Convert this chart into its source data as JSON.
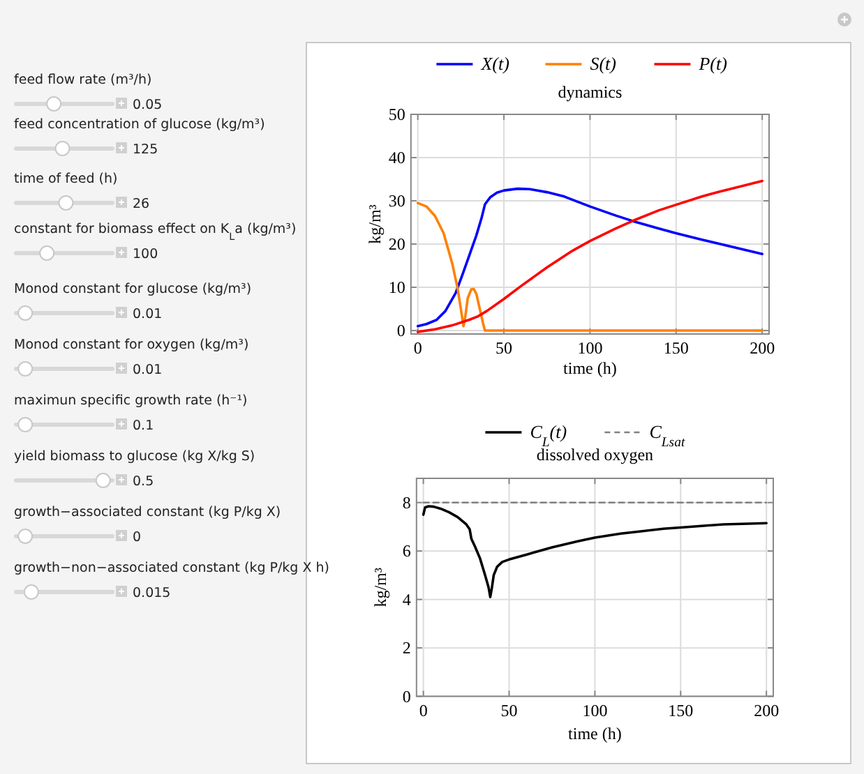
{
  "chart_data": [
    {
      "type": "other",
      "annotations": [
        "feed flow rate (m³/h)",
        "0.05",
        "feed concentration of glucose (kg/m³)",
        "125",
        "time of feed (h)",
        "26",
        "constant for biomass effect on K$_{L}$a (kg/m³)",
        "100",
        "Monod constant for glucose (kg/m³)",
        "0.01",
        "Monod constant for oxygen (kg/m³)",
        "0.01",
        "maximun specific growth rate (h⁻¹)",
        "0.1",
        "yield biomass to glucose (kg X/kg S)",
        "0.5",
        "growth−associated constant (kg P/kg X)",
        "0",
        "growth−non−associated constant (kg P/kg X h)",
        "0.015"
      ]
    },
    {
      "type": "line",
      "title": "dynamics",
      "xlabel": "time (h)",
      "ylabel": "kg/m³",
      "xlim": [
        -4,
        204
      ],
      "ylim": [
        -0.8,
        50
      ],
      "xticks": [
        0,
        50,
        100,
        150,
        200
      ],
      "yticks": [
        0,
        10,
        20,
        30,
        40,
        50
      ],
      "grid": true,
      "legend": "top",
      "series": [
        {
          "name": "X(t)",
          "color": "#0000ff",
          "x": [
            0,
            5,
            11,
            16,
            22,
            26,
            30,
            34,
            37,
            39,
            42,
            46,
            50,
            58,
            65,
            75,
            85,
            100,
            115,
            125,
            140,
            150,
            165,
            180,
            200
          ],
          "values": [
            1,
            1.5,
            2.5,
            4.5,
            8.7,
            13,
            17.5,
            22,
            26,
            29.2,
            30.8,
            31.9,
            32.4,
            32.8,
            32.7,
            32,
            31,
            28.7,
            26.6,
            25.3,
            23.6,
            22.5,
            21,
            19.6,
            17.7
          ]
        },
        {
          "name": "S(t)",
          "color": "#ff8000",
          "x": [
            0,
            5,
            10,
            15,
            20,
            23,
            25,
            26.5,
            27.5,
            29,
            31,
            32.5,
            34,
            36,
            38,
            39,
            40,
            100,
            200
          ],
          "values": [
            29.5,
            28.7,
            26.5,
            22.5,
            15.5,
            10,
            5,
            1,
            3,
            7.5,
            9.5,
            9.6,
            8.5,
            5,
            1.5,
            0,
            0,
            0,
            0
          ]
        },
        {
          "name": "P(t)",
          "color": "#ff0000",
          "x": [
            0,
            10,
            20,
            30,
            35,
            40,
            50,
            60,
            75,
            90,
            100,
            115,
            125,
            140,
            150,
            165,
            175,
            190,
            200
          ],
          "values": [
            -0.3,
            0.3,
            1.2,
            2.5,
            3.3,
            4.5,
            7.3,
            10.3,
            14.6,
            18.5,
            20.7,
            23.6,
            25.4,
            27.8,
            29.1,
            31,
            32.1,
            33.6,
            34.6
          ]
        }
      ]
    },
    {
      "type": "line",
      "title": "dissolved oxygen",
      "xlabel": "time (h)",
      "ylabel": "kg/m³",
      "xlim": [
        -4,
        204
      ],
      "ylim": [
        0,
        9
      ],
      "xticks": [
        0,
        50,
        100,
        150,
        200
      ],
      "yticks": [
        0,
        2,
        4,
        6,
        8
      ],
      "grid": true,
      "legend": "top",
      "series": [
        {
          "name": "C$_{L}$(t)",
          "color": "#000000",
          "x": [
            0,
            1,
            3,
            6,
            10,
            15,
            20,
            25,
            27,
            28,
            30,
            33,
            36,
            38,
            39,
            40,
            41,
            43,
            46,
            50,
            60,
            75,
            90,
            100,
            115,
            125,
            140,
            150,
            165,
            175,
            190,
            200
          ],
          "values": [
            7.5,
            7.8,
            7.85,
            7.83,
            7.75,
            7.6,
            7.4,
            7.1,
            6.9,
            6.5,
            6.2,
            5.7,
            5.0,
            4.5,
            4.1,
            4.5,
            5.0,
            5.35,
            5.55,
            5.65,
            5.85,
            6.15,
            6.4,
            6.55,
            6.72,
            6.8,
            6.92,
            6.97,
            7.05,
            7.1,
            7.13,
            7.15
          ]
        },
        {
          "name": "C$_{Lsat}$",
          "color": "#808080",
          "line_style": "dashed",
          "x": [
            0,
            200
          ],
          "values": [
            8,
            8
          ]
        }
      ]
    }
  ]
}
